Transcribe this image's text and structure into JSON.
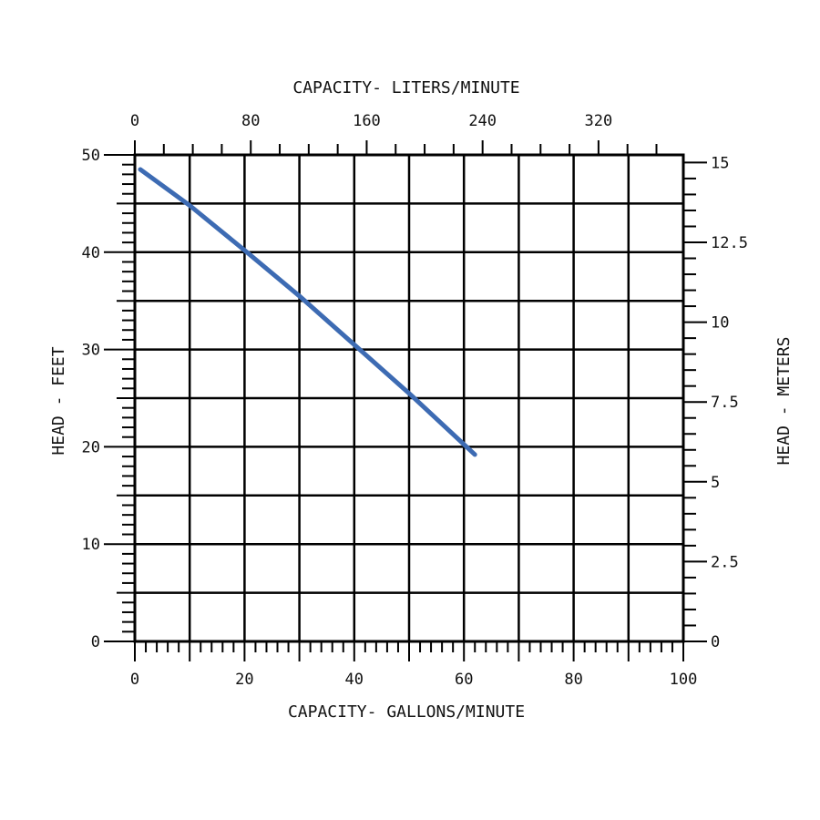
{
  "chart_data": {
    "type": "line",
    "title": "",
    "x_bottom": {
      "label": "CAPACITY- GALLONS/MINUTE",
      "range": [
        0,
        100
      ],
      "ticks": [
        "0",
        "20",
        "40",
        "60",
        "80",
        "100"
      ]
    },
    "x_top": {
      "label": "CAPACITY- LITERS/MINUTE",
      "ticks": [
        "0",
        "80",
        "160",
        "240",
        "320"
      ]
    },
    "y_left": {
      "label": "HEAD - FEET",
      "range": [
        0,
        50
      ],
      "ticks": [
        "0",
        "10",
        "20",
        "30",
        "40",
        "50"
      ]
    },
    "y_right": {
      "label": "HEAD - METERS",
      "ticks": [
        "0",
        "2.5",
        "5",
        "7.5",
        "10",
        "12.5",
        "15"
      ]
    },
    "grid": true,
    "series": [
      {
        "color": "#3d6bb3",
        "x": [
          1,
          10,
          20,
          30,
          40,
          50,
          62
        ],
        "y": [
          48.5,
          44.8,
          40.2,
          35.5,
          30.5,
          25.5,
          19.2
        ]
      }
    ]
  }
}
